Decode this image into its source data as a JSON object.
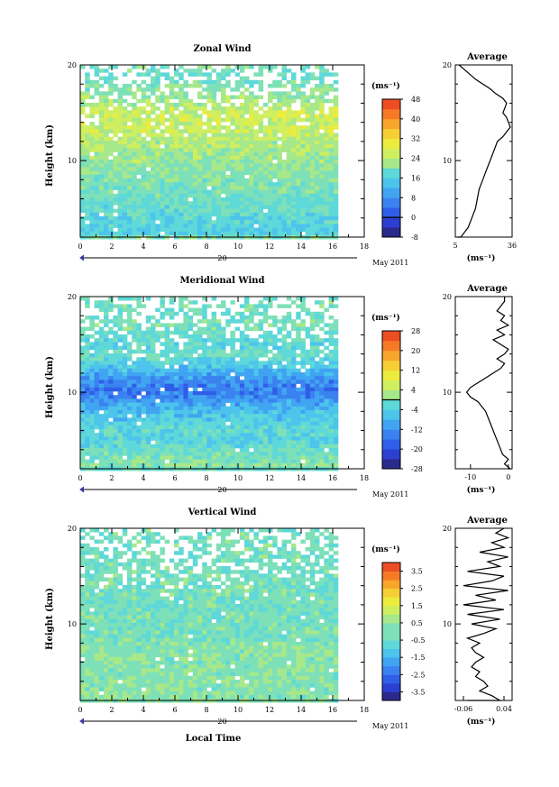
{
  "colors": {
    "frame": "#000000",
    "missing": "#ffffff",
    "contour": "#000000"
  },
  "date_label": "May 2011",
  "day_label": "20",
  "xlabel": "Local Time",
  "chart_data": [
    {
      "id": "zonal",
      "type": "heatmap",
      "title": "Zonal Wind",
      "ylabel": "Height (km)",
      "xlim": [
        0,
        18
      ],
      "ylim": [
        2,
        20
      ],
      "x_ticks": [
        0,
        2,
        4,
        6,
        8,
        10,
        12,
        14,
        16,
        18
      ],
      "y_ticks": [
        10,
        20
      ],
      "data_xlim": [
        0,
        16.3
      ],
      "unit": "(ms⁻¹)",
      "colorbar": {
        "min": -8,
        "max": 48,
        "step": 4,
        "tick_labels": [
          "48",
          "40",
          "32",
          "24",
          "16",
          "8",
          "0",
          "-8"
        ],
        "tick_values": [
          48,
          40,
          32,
          24,
          16,
          8,
          0,
          -8
        ],
        "zero_line": 0,
        "palette": [
          "#2a2a8c",
          "#2b3fd0",
          "#2f5ee8",
          "#3a82f0",
          "#41a4f2",
          "#4cc4ec",
          "#5ed8d8",
          "#7de0b8",
          "#a6e88a",
          "#cfee60",
          "#ecec3e",
          "#f6cf34",
          "#f8a52c",
          "#f67a26",
          "#ec4e22"
        ]
      },
      "profile_levels": [
        2,
        12,
        13,
        14,
        15,
        16,
        17,
        18,
        19,
        20
      ],
      "profile_values": [
        14,
        25,
        27,
        27,
        28,
        24,
        22,
        20,
        18,
        20
      ],
      "average": {
        "title": "Average",
        "xlim": [
          5,
          36
        ],
        "x_ticks": [
          "5",
          "36"
        ],
        "unit": "(ms⁻¹)",
        "heights": [
          1.5,
          2,
          3,
          4,
          5,
          6,
          7,
          8,
          9,
          10,
          11,
          12,
          12.5,
          13,
          13.5,
          14,
          14.5,
          15,
          15.5,
          16,
          16.5,
          17,
          17.5,
          18,
          18.5,
          19,
          19.5,
          20
        ],
        "values": [
          6,
          8,
          12,
          14,
          16,
          17,
          18,
          20,
          22,
          24,
          26,
          28,
          31,
          33,
          35,
          34,
          33,
          31,
          32,
          33,
          31,
          27,
          24,
          20,
          16,
          13,
          10,
          7
        ]
      }
    },
    {
      "id": "meridional",
      "type": "heatmap",
      "title": "Meridional Wind",
      "ylabel": "Height (km)",
      "xlim": [
        0,
        18
      ],
      "ylim": [
        2,
        20
      ],
      "x_ticks": [
        0,
        2,
        4,
        6,
        8,
        10,
        12,
        14,
        16,
        18
      ],
      "y_ticks": [
        10,
        20
      ],
      "data_xlim": [
        0,
        16.3
      ],
      "unit": "(ms⁻¹)",
      "colorbar": {
        "min": -28,
        "max": 28,
        "step": 4,
        "tick_labels": [
          "28",
          "20",
          "12",
          "4",
          "-4",
          "-12",
          "-20",
          "-28"
        ],
        "tick_values": [
          28,
          20,
          12,
          4,
          -4,
          -12,
          -20,
          -28
        ],
        "zero_line": 0,
        "palette": [
          "#2a2a8c",
          "#2b3fd0",
          "#2f5ee8",
          "#3a82f0",
          "#41a4f2",
          "#4cc4ec",
          "#5ed8d8",
          "#7de0b8",
          "#a6e88a",
          "#cfee60",
          "#ecec3e",
          "#f6cf34",
          "#f8a52c",
          "#f67a26",
          "#ec4e22"
        ]
      },
      "profile_levels": [
        2,
        3,
        4,
        5,
        6,
        7,
        8,
        9,
        10,
        11,
        12,
        13,
        14,
        15,
        16,
        17,
        18,
        19,
        20
      ],
      "profile_values": [
        2,
        0,
        -2,
        -5,
        -3,
        -6,
        -8,
        -12,
        -16,
        -14,
        -10,
        -5,
        -2,
        -4,
        -2,
        0,
        -2,
        0,
        -2
      ],
      "average": {
        "title": "Average",
        "xlim": [
          -14,
          1
        ],
        "x_ticks": [
          "-10",
          "0"
        ],
        "x_tick_values": [
          -10,
          0
        ],
        "unit": "(ms⁻¹)",
        "heights": [
          1.5,
          2,
          2.5,
          3,
          3.5,
          4,
          5,
          6,
          7,
          8,
          9,
          9.5,
          10,
          10.5,
          11,
          11.5,
          12,
          12.5,
          13,
          13.5,
          14,
          14.5,
          15,
          15.5,
          16,
          16.5,
          17,
          17.5,
          18,
          18.5,
          19,
          19.5,
          20
        ],
        "values": [
          0,
          0.5,
          -1,
          0,
          -1.5,
          -2,
          -3,
          -4,
          -5,
          -6,
          -8,
          -10,
          -11,
          -10,
          -8,
          -6,
          -4,
          -2,
          -1,
          -3,
          -1,
          0,
          -2,
          -4,
          -1,
          -3,
          0,
          -2,
          -1,
          -3,
          -2,
          -1,
          -1
        ]
      }
    },
    {
      "id": "vertical",
      "type": "heatmap",
      "title": "Vertical Wind",
      "ylabel": "Height (km)",
      "xlim": [
        0,
        18
      ],
      "ylim": [
        2,
        20
      ],
      "x_ticks": [
        0,
        2,
        4,
        6,
        8,
        10,
        12,
        14,
        16,
        18
      ],
      "y_ticks": [
        10,
        20
      ],
      "data_xlim": [
        0,
        16.3
      ],
      "unit": "(ms⁻¹)",
      "colorbar": {
        "min": -4,
        "max": 4,
        "step": 0.5,
        "tick_labels": [
          "3.5",
          "2.5",
          "1.5",
          "0.5",
          "-0.5",
          "-1.5",
          "-2.5",
          "-3.5"
        ],
        "tick_values": [
          3.5,
          2.5,
          1.5,
          0.5,
          -0.5,
          -1.5,
          -2.5,
          -3.5
        ],
        "palette": [
          "#2a2a8c",
          "#2b3fd0",
          "#2f5ee8",
          "#3a82f0",
          "#41a4f2",
          "#4cc4ec",
          "#5ed8d8",
          "#7de0b8",
          "#a6e88a",
          "#cfee60",
          "#ecec3e",
          "#f6cf34",
          "#f8a52c",
          "#f67a26",
          "#ec4e22"
        ]
      },
      "average": {
        "title": "Average",
        "xlim": [
          -0.08,
          0.06
        ],
        "x_ticks": [
          "-0.06",
          "0.04"
        ],
        "x_tick_values": [
          -0.06,
          0.04
        ],
        "unit": "(ms⁻¹)",
        "heights": [
          1.5,
          2,
          2.5,
          3,
          3.5,
          4,
          4.5,
          5,
          5.5,
          6,
          6.5,
          7,
          7.5,
          8,
          8.5,
          9,
          9.5,
          10,
          10.5,
          11,
          11.5,
          12,
          12.5,
          13,
          13.5,
          14,
          14.5,
          15,
          15.5,
          16,
          16.5,
          17,
          17.5,
          18,
          18.5,
          19,
          19.5,
          20
        ],
        "values": [
          -0.05,
          0.03,
          0.01,
          -0.02,
          0.0,
          -0.01,
          -0.03,
          -0.02,
          -0.04,
          -0.03,
          -0.01,
          -0.03,
          -0.04,
          -0.02,
          -0.05,
          -0.01,
          0.02,
          -0.04,
          0.03,
          -0.05,
          0.04,
          -0.06,
          0.02,
          -0.03,
          0.05,
          -0.06,
          0.01,
          0.04,
          -0.05,
          0.03,
          0.0,
          0.05,
          -0.02,
          0.04,
          0.01,
          0.05,
          0.02,
          0.04
        ]
      }
    }
  ]
}
